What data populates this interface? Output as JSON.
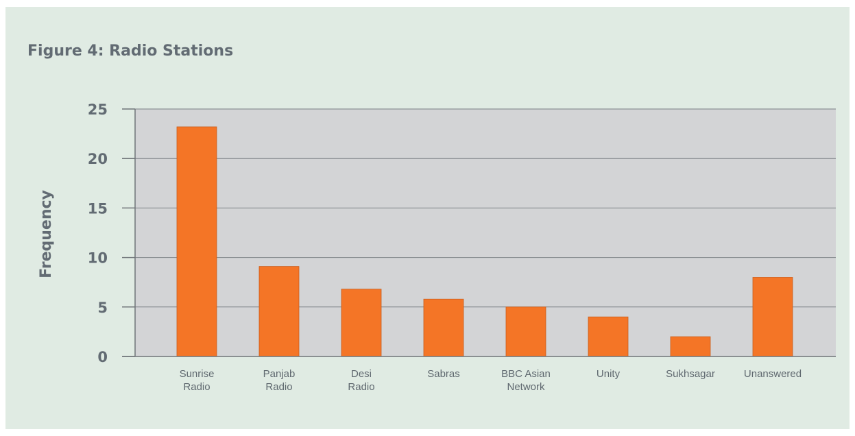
{
  "colors": {
    "background": "#e0ebe3",
    "plot_area": "#d3d4d6",
    "bar": "#f47526",
    "text": "#626b73",
    "grid": "#7a7f84"
  },
  "chart_data": {
    "type": "bar",
    "title": "Figure 4: Radio Stations",
    "ylabel": "Frequency",
    "xlabel": "",
    "categories": [
      [
        "Sunrise",
        "Radio"
      ],
      [
        "Panjab",
        "Radio"
      ],
      [
        "Desi",
        "Radio"
      ],
      [
        "Sabras"
      ],
      [
        "BBC Asian",
        "Network"
      ],
      [
        "Unity"
      ],
      [
        "Sukhsagar"
      ],
      [
        "Unanswered"
      ]
    ],
    "values": [
      23.2,
      9.1,
      6.8,
      5.8,
      5.0,
      4.0,
      2.0,
      8.0
    ],
    "ylim": [
      0,
      25
    ],
    "yticks": [
      0,
      5,
      10,
      15,
      20,
      25
    ],
    "grid": true,
    "legend": "none"
  }
}
